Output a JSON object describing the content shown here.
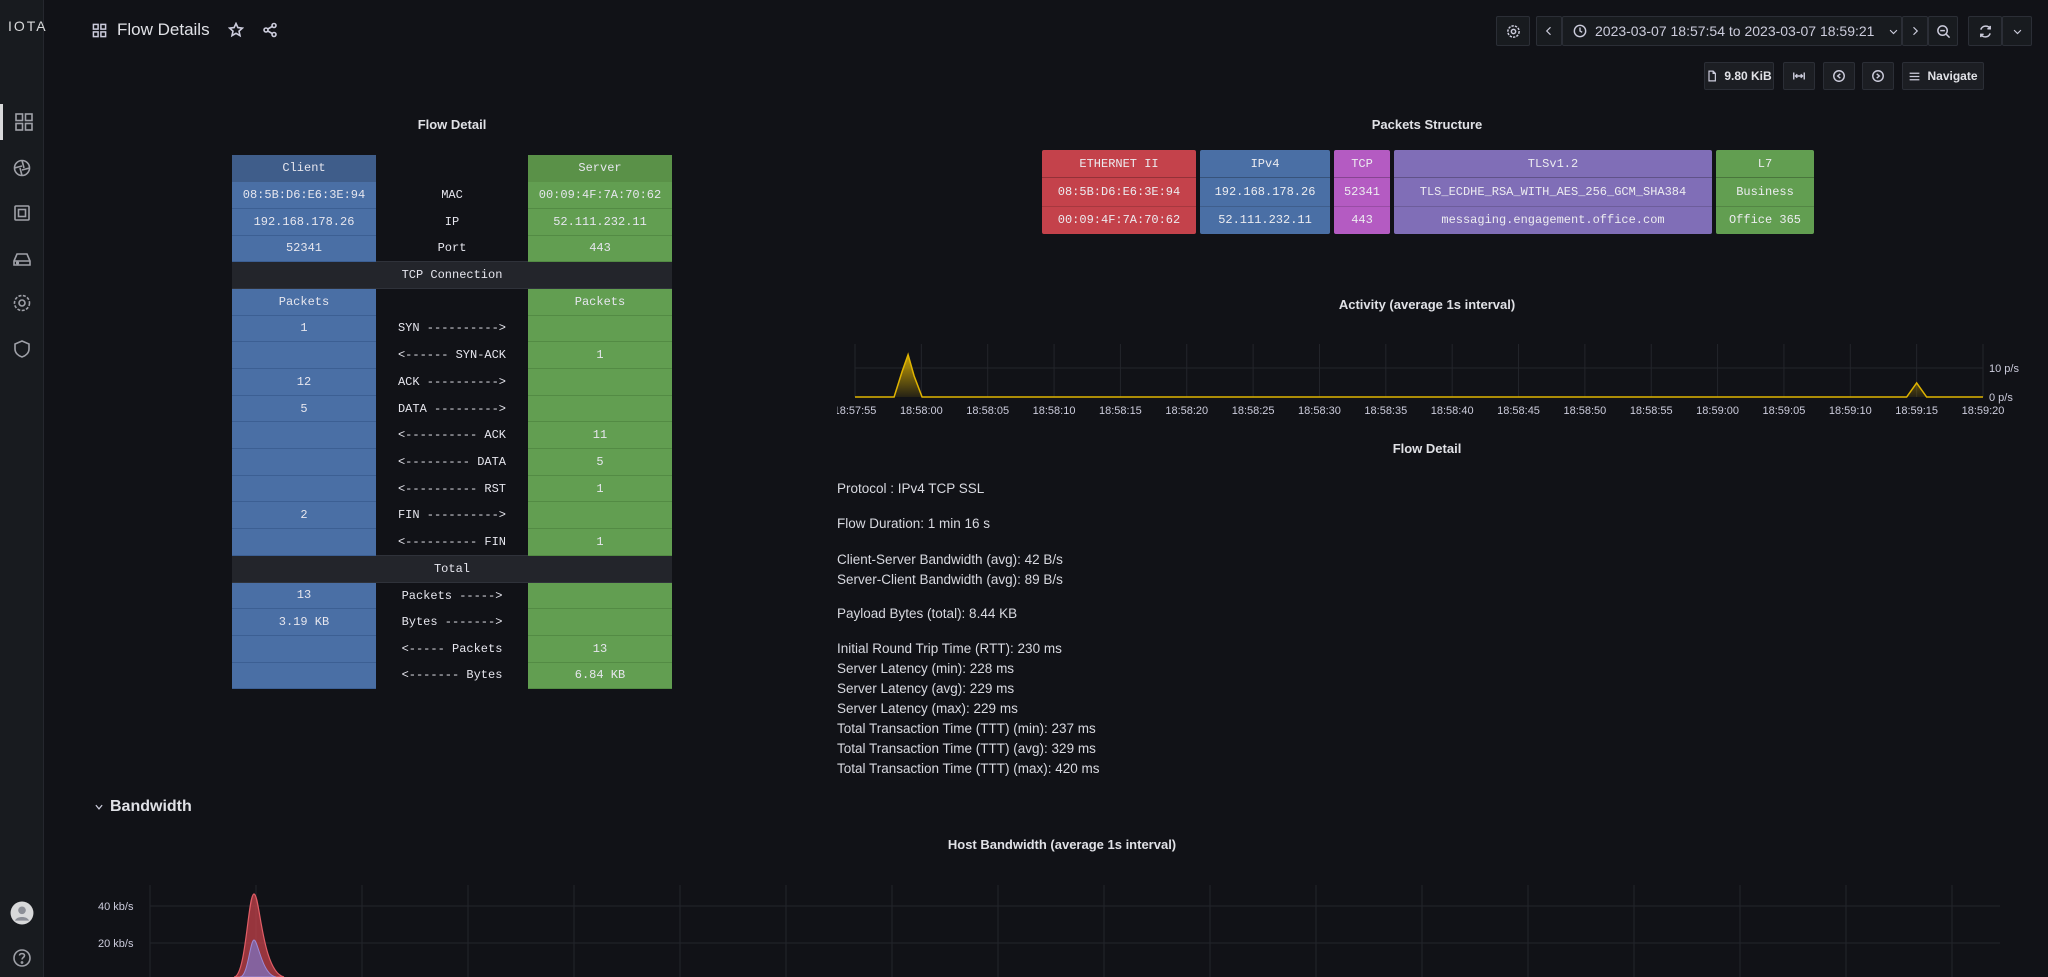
{
  "app": {
    "logo": "IOTA"
  },
  "header": {
    "title": "Flow Details",
    "time_range": "2023-03-07 18:57:54 to 2023-03-07 18:59:21",
    "file_size": "9.80 KiB",
    "navigate_label": "Navigate"
  },
  "flow_detail_panel": {
    "title": "Flow Detail",
    "client_header": "Client",
    "server_header": "Server",
    "id_rows": [
      {
        "client": "08:5B:D6:E6:3E:94",
        "label": "MAC",
        "server": "00:09:4F:7A:70:62"
      },
      {
        "client": "192.168.178.26",
        "label": "IP",
        "server": "52.111.232.11"
      },
      {
        "client": "52341",
        "label": "Port",
        "server": "443"
      }
    ],
    "tcp_section": "TCP Connection",
    "packets_header_client": "Packets",
    "packets_header_server": "Packets",
    "tcp_rows": [
      {
        "client": "1",
        "label": "SYN ---------->",
        "server": ""
      },
      {
        "client": "",
        "label": "<------ SYN-ACK",
        "server": "1"
      },
      {
        "client": "12",
        "label": "ACK ---------->",
        "server": ""
      },
      {
        "client": "5",
        "label": "DATA --------->",
        "server": ""
      },
      {
        "client": "",
        "label": "<---------- ACK",
        "server": "11"
      },
      {
        "client": "",
        "label": "<--------- DATA",
        "server": "5"
      },
      {
        "client": "",
        "label": "<---------- RST",
        "server": "1"
      },
      {
        "client": "2",
        "label": "FIN ---------->",
        "server": ""
      },
      {
        "client": "",
        "label": "<---------- FIN",
        "server": "1"
      }
    ],
    "total_section": "Total",
    "total_rows": [
      {
        "client": "13",
        "label": "Packets ----->",
        "server": ""
      },
      {
        "client": "3.19 KB",
        "label": "Bytes ------->",
        "server": ""
      },
      {
        "client": "",
        "label": "<----- Packets",
        "server": "13"
      },
      {
        "client": "",
        "label": "<------- Bytes",
        "server": "6.84 KB"
      }
    ]
  },
  "packets_structure": {
    "title": "Packets Structure",
    "layers": [
      {
        "header": "ETHERNET II",
        "line1": "08:5B:D6:E6:3E:94",
        "line2": "00:09:4F:7A:70:62",
        "color": "#c4424b"
      },
      {
        "header": "IPv4",
        "line1": "192.168.178.26",
        "line2": "52.111.232.11",
        "color": "#4a6fa5"
      },
      {
        "header": "TCP",
        "line1": "52341",
        "line2": "443",
        "color": "#b45bc2"
      },
      {
        "header": "TLSv1.2",
        "line1": "TLS_ECDHE_RSA_WITH_AES_256_GCM_SHA384",
        "line2": "messaging.engagement.office.com",
        "color": "#806eb7"
      },
      {
        "header": "L7",
        "line1": "Business",
        "line2": "Office 365",
        "color": "#629e51"
      }
    ]
  },
  "activity_chart": {
    "title": "Activity (average 1s interval)",
    "y_ticks": [
      "10 p/s",
      "0 p/s"
    ],
    "x_ticks": [
      "18:57:55",
      "18:58:00",
      "18:58:05",
      "18:58:10",
      "18:58:15",
      "18:58:20",
      "18:58:25",
      "18:58:30",
      "18:58:35",
      "18:58:40",
      "18:58:45",
      "18:58:50",
      "18:58:55",
      "18:59:00",
      "18:59:05",
      "18:59:10",
      "18:59:15",
      "18:59:20"
    ],
    "line_color": "#e0b400"
  },
  "flow_detail_text": {
    "title": "Flow Detail",
    "lines": [
      "Protocol : IPv4 TCP SSL",
      "Flow Duration: 1 min 16 s",
      "Client-Server Bandwidth (avg): 42 B/s",
      "Server-Client Bandwidth (avg): 89 B/s",
      "Payload Bytes (total): 8.44 KB",
      "Initial Round Trip Time (RTT): 230 ms",
      "Server Latency (min): 228 ms",
      "Server Latency (avg): 229 ms",
      "Server Latency (max): 229 ms",
      "Total Transaction Time (TTT) (min): 237 ms",
      "Total Transaction Time (TTT) (avg): 329 ms",
      "Total Transaction Time (TTT) (max): 420 ms"
    ]
  },
  "bandwidth_section": {
    "title": "Bandwidth",
    "chart_title": "Host Bandwidth (average 1s interval)",
    "y_ticks": [
      "40 kb/s",
      "20 kb/s"
    ]
  },
  "chart_data": [
    {
      "type": "area",
      "title": "Activity (average 1s interval)",
      "x": [
        "18:57:55",
        "18:58:00",
        "18:58:05",
        "18:58:10",
        "18:58:15",
        "18:58:20",
        "18:58:25",
        "18:58:30",
        "18:58:35",
        "18:58:40",
        "18:58:45",
        "18:58:50",
        "18:58:55",
        "18:59:00",
        "18:59:05",
        "18:59:10",
        "18:59:15",
        "18:59:20"
      ],
      "series": [
        {
          "values": [
            0,
            0,
            0,
            0,
            0,
            0,
            0,
            0,
            0,
            0,
            0,
            0,
            0,
            0,
            0,
            0,
            0,
            0
          ]
        }
      ],
      "peaks": [
        {
          "x": "18:57:59",
          "y": 9
        },
        {
          "x": "18:59:15",
          "y": 3
        }
      ],
      "ylim": [
        0,
        10
      ],
      "grid": true
    },
    {
      "type": "area",
      "title": "Host Bandwidth (average 1s interval)",
      "y_ticks": [
        "40 kb/s",
        "20 kb/s"
      ],
      "peaks": [
        {
          "series": 0,
          "y": 45
        },
        {
          "series": 1,
          "y": 22
        }
      ],
      "grid": true
    }
  ]
}
